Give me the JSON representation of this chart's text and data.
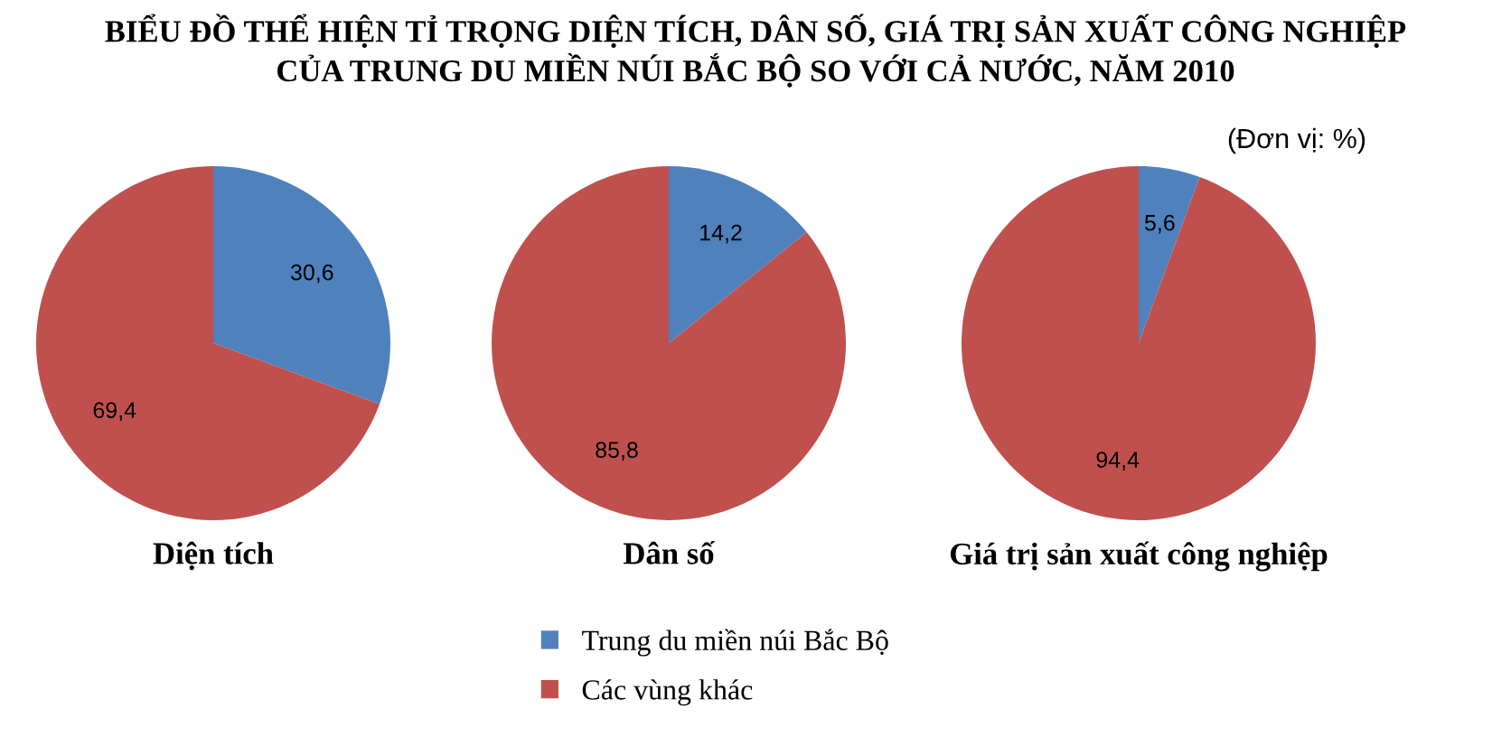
{
  "chart_data": [
    {
      "type": "pie",
      "title": "BIỂU ĐỒ THỂ HIỆN TỈ TRỌNG DIỆN TÍCH, DÂN SỐ, GIÁ TRỊ SẢN XUẤT CÔNG NGHIỆP\nCỦA TRUNG DU MIỀN NÚI BẮC BỘ SO VỚI CẢ NƯỚC, NĂM 2010",
      "xlabel": "Diện tích",
      "categories": [
        "Trung du miền núi Bắc Bộ",
        "Các vùng khác"
      ],
      "values": [
        30.6,
        69.4
      ],
      "value_labels": [
        "30,6",
        "69,4"
      ],
      "colors": [
        "#4f81bd",
        "#c0504d"
      ],
      "legend": "bottom"
    },
    {
      "type": "pie",
      "xlabel": "Dân số",
      "categories": [
        null,
        null
      ],
      "values": [
        14.2,
        85.8
      ],
      "value_labels": [
        "14,2",
        "85,8"
      ],
      "colors": [
        "#4f81bd",
        "#c0504d"
      ]
    },
    {
      "type": "pie",
      "xlabel": "Giá trị sản xuất công nghiệp",
      "annotations": [
        "(Đơn vị: %)"
      ],
      "categories": [
        null,
        null
      ],
      "values": [
        5.6,
        94.4
      ],
      "value_labels": [
        "5,6",
        "94,4"
      ],
      "colors": [
        "#4f81bd",
        "#c0504d"
      ]
    }
  ]
}
